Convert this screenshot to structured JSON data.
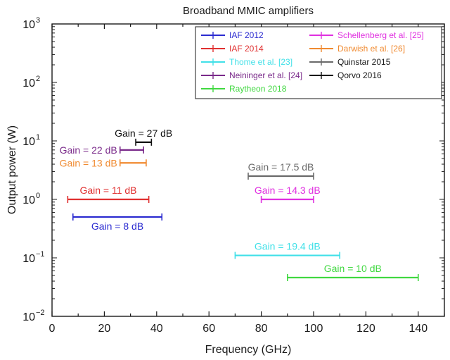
{
  "chart_data": {
    "type": "errorbar",
    "title": "Broadband MMIC amplifiers",
    "xlabel": "Frequency (GHz)",
    "ylabel": "Output power (W)",
    "xlim": [
      0,
      150
    ],
    "ylim": [
      0.01,
      1000
    ],
    "yscale": "log",
    "xticks": [
      0,
      20,
      40,
      60,
      80,
      100,
      120,
      140
    ],
    "xtick_labels": [
      "0",
      "20",
      "40",
      "60",
      "80",
      "100",
      "120",
      "140"
    ],
    "yticks": [
      0.01,
      0.1,
      1,
      10,
      100,
      1000
    ],
    "ytick_bases": [
      "10",
      "10",
      "10",
      "10",
      "10",
      "10"
    ],
    "ytick_exponents": [
      "−2",
      "−1",
      "0",
      "1",
      "2",
      "3"
    ],
    "grid": false,
    "legend_position": "top-right",
    "series": [
      {
        "name": "IAF 2012",
        "color": "#2b2bd0",
        "f_start": 8,
        "f_stop": 42,
        "power": 0.5,
        "annotation": "Gain = 8 dB",
        "label_pos": "below"
      },
      {
        "name": "IAF 2014",
        "color": "#e03030",
        "f_start": 6,
        "f_stop": 37,
        "power": 1.0,
        "annotation": "Gain = 11 dB",
        "label_pos": "above"
      },
      {
        "name": "Thome et al. [23]",
        "color": "#40e0e8",
        "f_start": 70,
        "f_stop": 110,
        "power": 0.11,
        "annotation": "Gain = 19.4 dB",
        "label_pos": "above"
      },
      {
        "name": "Neininger et al. [24]",
        "color": "#7a2a8a",
        "f_start": 26,
        "f_stop": 35,
        "power": 7.0,
        "annotation": "Gain = 22 dB",
        "label_pos": "left"
      },
      {
        "name": "Raytheon 2018",
        "color": "#40d840",
        "f_start": 90,
        "f_stop": 140,
        "power": 0.046,
        "annotation": "Gain = 10 dB",
        "label_pos": "above"
      },
      {
        "name": "Schellenberg et al. [25]",
        "color": "#e030e0",
        "f_start": 80,
        "f_stop": 100,
        "power": 1.0,
        "annotation": "Gain = 14.3 dB",
        "label_pos": "above"
      },
      {
        "name": "Darwish et al. [26]",
        "color": "#f08a30",
        "f_start": 26,
        "f_stop": 36,
        "power": 4.2,
        "annotation": "Gain = 13 dB",
        "label_pos": "left"
      },
      {
        "name": "Quinstar 2015",
        "color": "#6a6a6a",
        "f_start": 75,
        "f_stop": 100,
        "power": 2.5,
        "annotation": "Gain = 17.5 dB",
        "label_pos": "above"
      },
      {
        "name": "Qorvo 2016",
        "color": "#101010",
        "f_start": 32,
        "f_stop": 38,
        "power": 9.5,
        "annotation": "Gain = 27 dB",
        "label_pos": "above"
      }
    ]
  }
}
